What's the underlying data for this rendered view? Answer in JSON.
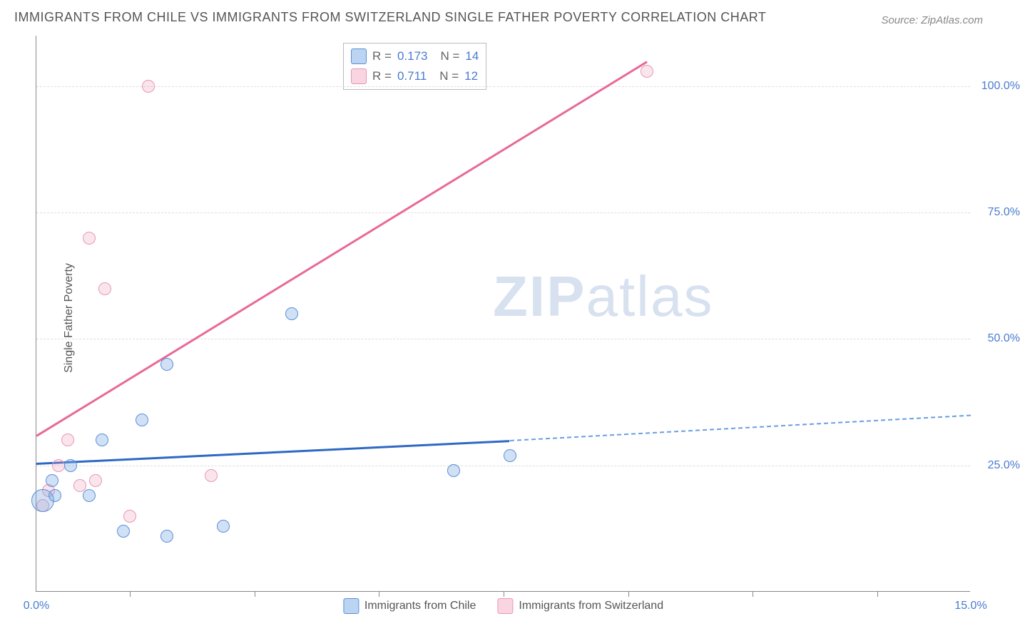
{
  "title": "IMMIGRANTS FROM CHILE VS IMMIGRANTS FROM SWITZERLAND SINGLE FATHER POVERTY CORRELATION CHART",
  "source": "Source: ZipAtlas.com",
  "y_axis_title": "Single Father Poverty",
  "watermark_left": "ZIP",
  "watermark_right": "atlas",
  "chart": {
    "type": "scatter",
    "background_color": "#ffffff",
    "grid_color": "#dddddd",
    "axis_color": "#888888",
    "xlim": [
      0,
      15
    ],
    "ylim": [
      0,
      110
    ],
    "x_ticks": [
      0.0,
      15.0
    ],
    "x_tick_labels": [
      "0.0%",
      "15.0%"
    ],
    "x_minor_ticks": [
      1.5,
      3.5,
      5.5,
      7.5,
      9.5,
      11.5,
      13.5
    ],
    "y_ticks": [
      25.0,
      50.0,
      75.0,
      100.0
    ],
    "y_tick_labels": [
      "25.0%",
      "50.0%",
      "75.0%",
      "100.0%"
    ],
    "tick_fontsize": 16,
    "tick_color": "#4a7bd0",
    "axis_title_fontsize": 16,
    "axis_title_color": "#555555",
    "marker_default_size": 18
  },
  "series": {
    "chile": {
      "label": "Immigrants from Chile",
      "color_fill": "rgba(120,170,230,0.35)",
      "color_border": "#5a8fd6",
      "trend_color": "#2d69c4",
      "stats": {
        "R": "0.173",
        "N": "14"
      },
      "trend": {
        "x1": 0,
        "y1": 25.5,
        "x2": 7.6,
        "y2": 30.0,
        "dash_x2": 15.0,
        "dash_y2": 35.0
      },
      "points": [
        {
          "x": 0.1,
          "y": 18,
          "size": 32
        },
        {
          "x": 0.25,
          "y": 22,
          "size": 18
        },
        {
          "x": 0.3,
          "y": 19,
          "size": 18
        },
        {
          "x": 0.55,
          "y": 25,
          "size": 18
        },
        {
          "x": 0.85,
          "y": 19,
          "size": 18
        },
        {
          "x": 1.05,
          "y": 30,
          "size": 18
        },
        {
          "x": 1.4,
          "y": 12,
          "size": 18
        },
        {
          "x": 1.7,
          "y": 34,
          "size": 18
        },
        {
          "x": 2.1,
          "y": 45,
          "size": 18
        },
        {
          "x": 2.1,
          "y": 11,
          "size": 18
        },
        {
          "x": 3.0,
          "y": 13,
          "size": 18
        },
        {
          "x": 4.1,
          "y": 55,
          "size": 18
        },
        {
          "x": 6.7,
          "y": 24,
          "size": 18
        },
        {
          "x": 7.6,
          "y": 27,
          "size": 18
        }
      ]
    },
    "switzerland": {
      "label": "Immigrants from Switzerland",
      "color_fill": "rgba(240,150,180,0.25)",
      "color_border": "#e896b5",
      "trend_color": "#e86998",
      "stats": {
        "R": "0.711",
        "N": "12"
      },
      "trend": {
        "x1": 0,
        "y1": 31,
        "x2": 9.8,
        "y2": 105
      },
      "points": [
        {
          "x": 0.1,
          "y": 17,
          "size": 18
        },
        {
          "x": 0.2,
          "y": 20,
          "size": 18
        },
        {
          "x": 0.35,
          "y": 25,
          "size": 18
        },
        {
          "x": 0.5,
          "y": 30,
          "size": 18
        },
        {
          "x": 0.7,
          "y": 21,
          "size": 18
        },
        {
          "x": 0.85,
          "y": 70,
          "size": 18
        },
        {
          "x": 1.1,
          "y": 60,
          "size": 18
        },
        {
          "x": 1.5,
          "y": 15,
          "size": 18
        },
        {
          "x": 1.8,
          "y": 100,
          "size": 18
        },
        {
          "x": 2.8,
          "y": 23,
          "size": 18
        },
        {
          "x": 9.8,
          "y": 103,
          "size": 18
        },
        {
          "x": 0.95,
          "y": 22,
          "size": 18
        }
      ]
    }
  },
  "stats_labels": {
    "R": "R =",
    "N": "N ="
  }
}
